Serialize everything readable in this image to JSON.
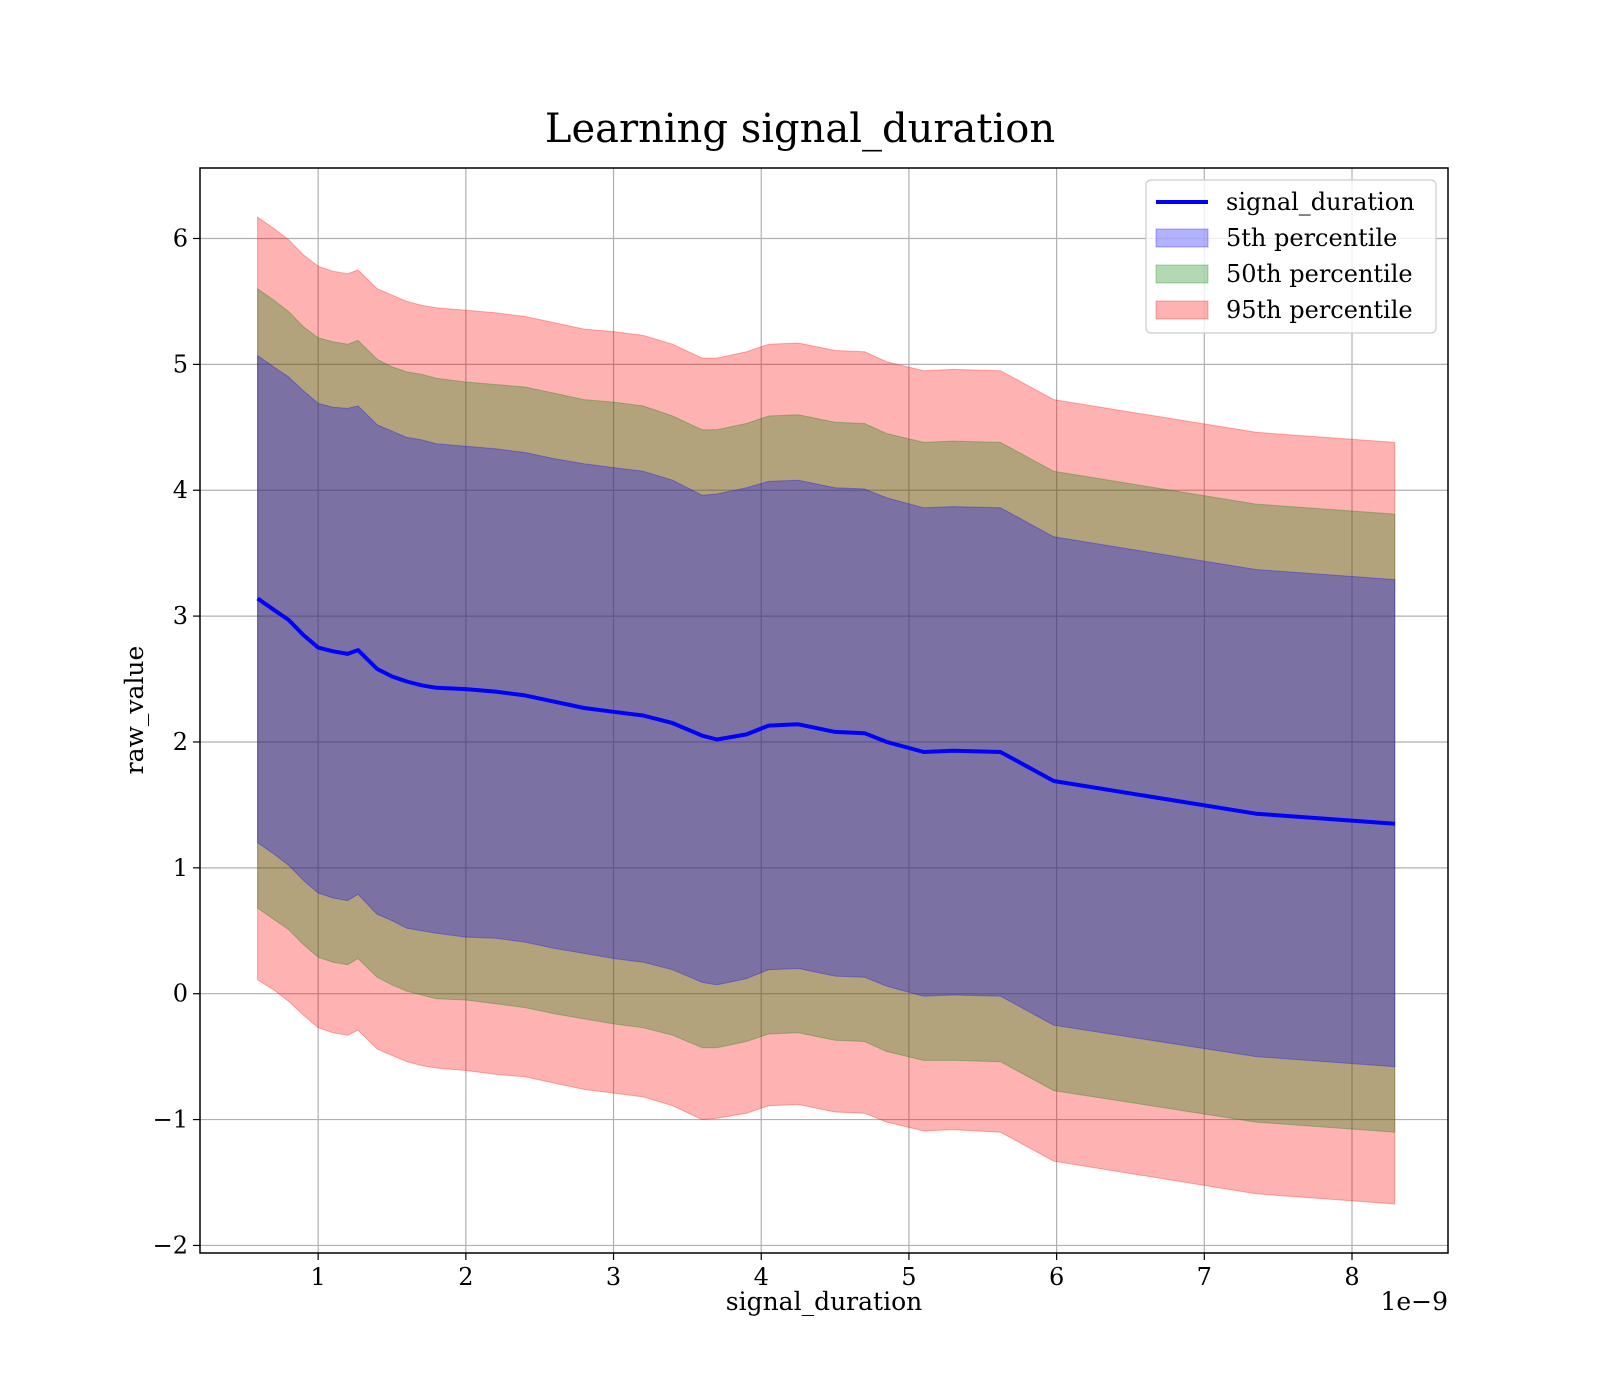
{
  "chart_data": {
    "type": "line",
    "title": "Learning signal_duration",
    "xlabel": "signal_duration",
    "ylabel": "raw_value",
    "x_offset_text": "1e−9",
    "xlim": [
      2e-10,
      8.65e-09
    ],
    "ylim": [
      -2.06,
      6.56
    ],
    "x_ticks": [
      1e-09,
      2e-09,
      3e-09,
      4e-09,
      5e-09,
      6e-09,
      7e-09,
      8e-09
    ],
    "x_tick_labels": [
      "1",
      "2",
      "3",
      "4",
      "5",
      "6",
      "7",
      "8"
    ],
    "y_ticks": [
      -2,
      -1,
      0,
      1,
      2,
      3,
      4,
      5,
      6
    ],
    "y_tick_labels": [
      "−2",
      "−1",
      "0",
      "1",
      "2",
      "3",
      "4",
      "5",
      "6"
    ],
    "grid": true,
    "legend_position": "top-right",
    "colors": {
      "line": "#0000ff",
      "band_5th": "#0000ff",
      "band_50th": "#008000",
      "band_95th": "#ff0000"
    },
    "x": [
      5.9e-10,
      7e-10,
      8e-10,
      9e-10,
      1e-09,
      1.1e-09,
      1.2e-09,
      1.27e-09,
      1.4e-09,
      1.5e-09,
      1.6e-09,
      1.7e-09,
      1.8e-09,
      2e-09,
      2.2e-09,
      2.4e-09,
      2.6e-09,
      2.8e-09,
      3e-09,
      3.2e-09,
      3.4e-09,
      3.6e-09,
      3.7e-09,
      3.9e-09,
      4.05e-09,
      4.25e-09,
      4.5e-09,
      4.7e-09,
      4.85e-09,
      5.1e-09,
      5.3e-09,
      5.62e-09,
      5.98e-09,
      7.35e-09,
      8.29e-09
    ],
    "series": [
      {
        "name": "signal_duration",
        "values": [
          3.14,
          3.05,
          2.97,
          2.85,
          2.75,
          2.72,
          2.7,
          2.73,
          2.58,
          2.52,
          2.48,
          2.45,
          2.43,
          2.42,
          2.4,
          2.37,
          2.32,
          2.27,
          2.24,
          2.21,
          2.15,
          2.05,
          2.02,
          2.06,
          2.13,
          2.14,
          2.08,
          2.07,
          2.0,
          1.92,
          1.93,
          1.92,
          1.69,
          1.43,
          1.35
        ]
      },
      {
        "name": "5th percentile",
        "lower": [
          1.2,
          1.11,
          1.02,
          0.9,
          0.8,
          0.76,
          0.74,
          0.79,
          0.63,
          0.58,
          0.52,
          0.5,
          0.48,
          0.45,
          0.44,
          0.41,
          0.36,
          0.32,
          0.28,
          0.25,
          0.19,
          0.09,
          0.07,
          0.12,
          0.19,
          0.2,
          0.14,
          0.13,
          0.06,
          -0.02,
          -0.01,
          -0.02,
          -0.25,
          -0.5,
          -0.58
        ],
        "upper": [
          5.07,
          4.98,
          4.9,
          4.79,
          4.69,
          4.66,
          4.65,
          4.67,
          4.52,
          4.47,
          4.42,
          4.4,
          4.37,
          4.35,
          4.33,
          4.3,
          4.25,
          4.21,
          4.18,
          4.15,
          4.08,
          3.96,
          3.97,
          4.02,
          4.07,
          4.08,
          4.02,
          4.01,
          3.94,
          3.86,
          3.87,
          3.86,
          3.63,
          3.37,
          3.29
        ]
      },
      {
        "name": "50th percentile",
        "lower": [
          0.68,
          0.59,
          0.51,
          0.39,
          0.29,
          0.25,
          0.23,
          0.28,
          0.13,
          0.07,
          0.02,
          -0.01,
          -0.04,
          -0.05,
          -0.08,
          -0.11,
          -0.16,
          -0.2,
          -0.24,
          -0.27,
          -0.33,
          -0.43,
          -0.43,
          -0.38,
          -0.32,
          -0.31,
          -0.37,
          -0.38,
          -0.46,
          -0.53,
          -0.53,
          -0.54,
          -0.77,
          -1.02,
          -1.1
        ]
      },
      {
        "name": "50th percentile upper",
        "upper": [
          5.6,
          5.51,
          5.42,
          5.3,
          5.21,
          5.18,
          5.16,
          5.19,
          5.04,
          4.98,
          4.94,
          4.92,
          4.89,
          4.86,
          4.84,
          4.82,
          4.77,
          4.72,
          4.7,
          4.67,
          4.59,
          4.48,
          4.48,
          4.53,
          4.59,
          4.6,
          4.54,
          4.53,
          4.45,
          4.38,
          4.39,
          4.38,
          4.15,
          3.89,
          3.81
        ]
      },
      {
        "name": "95th percentile",
        "lower": [
          0.11,
          0.03,
          -0.06,
          -0.17,
          -0.27,
          -0.31,
          -0.33,
          -0.29,
          -0.44,
          -0.49,
          -0.54,
          -0.57,
          -0.59,
          -0.61,
          -0.64,
          -0.66,
          -0.71,
          -0.76,
          -0.79,
          -0.82,
          -0.89,
          -1.0,
          -0.99,
          -0.95,
          -0.89,
          -0.88,
          -0.94,
          -0.95,
          -1.02,
          -1.09,
          -1.08,
          -1.1,
          -1.33,
          -1.59,
          -1.67
        ]
      },
      {
        "name": "95th percentile upper",
        "upper": [
          6.17,
          6.08,
          5.99,
          5.87,
          5.78,
          5.74,
          5.72,
          5.75,
          5.6,
          5.55,
          5.5,
          5.47,
          5.45,
          5.43,
          5.41,
          5.38,
          5.33,
          5.28,
          5.26,
          5.23,
          5.16,
          5.05,
          5.05,
          5.1,
          5.16,
          5.17,
          5.11,
          5.1,
          5.02,
          4.95,
          4.96,
          4.95,
          4.72,
          4.46,
          4.38
        ]
      }
    ],
    "legend": [
      {
        "label": "signal_duration",
        "kind": "line",
        "color": "#0000ff"
      },
      {
        "label": "5th percentile",
        "kind": "patch",
        "color": "#0000ff"
      },
      {
        "label": "50th percentile",
        "kind": "patch",
        "color": "#008000"
      },
      {
        "label": "95th percentile",
        "kind": "patch",
        "color": "#ff0000"
      }
    ]
  }
}
